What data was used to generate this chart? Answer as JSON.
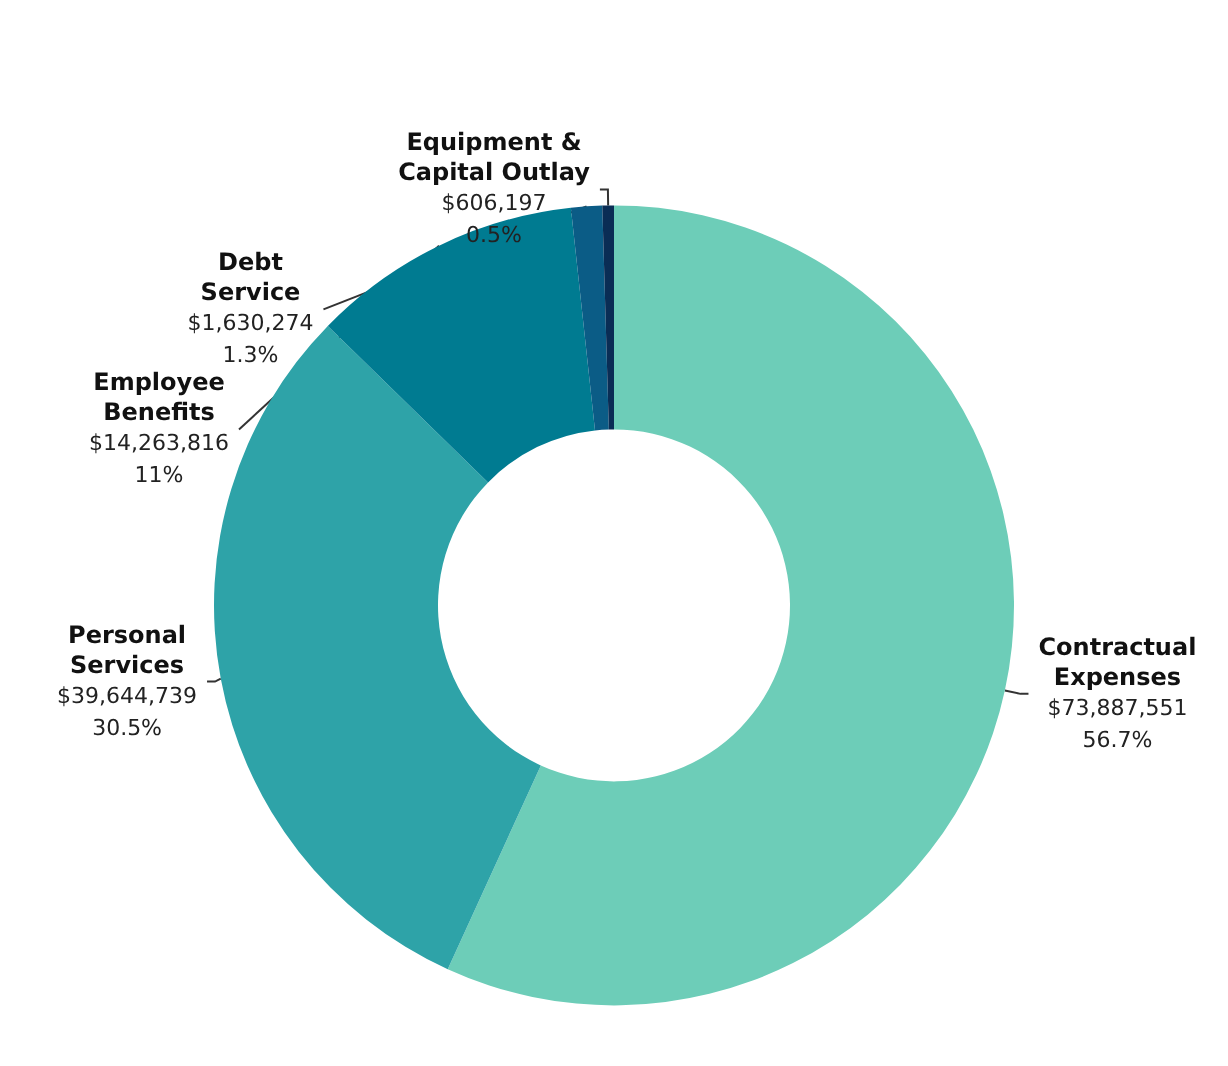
{
  "chart_data": {
    "type": "donut",
    "categories": [
      "Contractual Expenses",
      "Personal Services",
      "Employee Benefits",
      "Debt Service",
      "Equipment & Capital Outlay"
    ],
    "values": [
      73887551,
      39644739,
      14263816,
      1630274,
      606197
    ],
    "colors": [
      "#6dcdb8",
      "#2ea3a8",
      "#007b91",
      "#0b5c86",
      "#0a2d55"
    ],
    "value_labels": [
      "$73,887,551\n56.7%",
      "$39,644,739\n30.5%",
      "$14,263,816\n11%",
      "$1,630,274\n1.3%",
      "$606,197\n0.5%"
    ],
    "legend": false
  }
}
